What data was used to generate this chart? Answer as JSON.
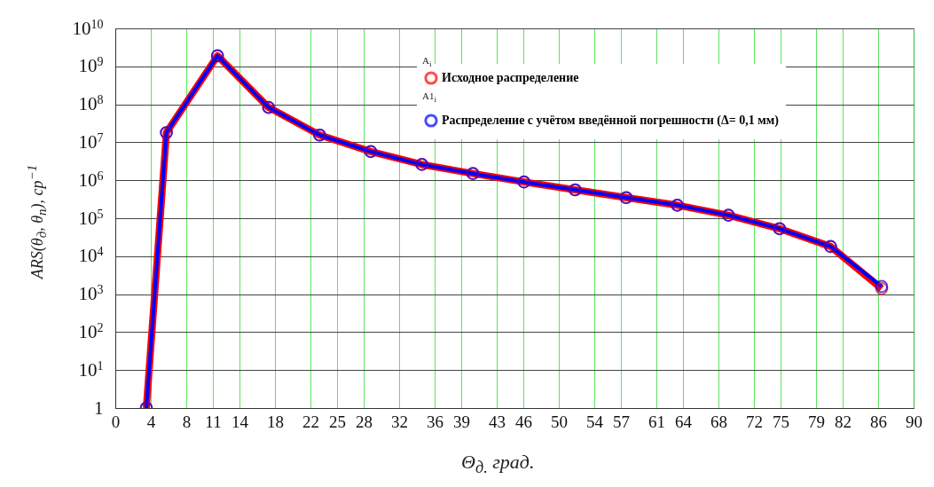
{
  "chart_data": {
    "type": "line",
    "xlabel": "Θ$_{д.}$ град.",
    "ylabel": "ARS(θ$_{д}$, θ$_{п}$), ср$^{−1}$",
    "x": [
      3.5,
      5.76,
      11.52,
      17.28,
      23.04,
      28.8,
      34.56,
      40.32,
      46.08,
      51.84,
      57.6,
      63.36,
      69.12,
      74.88,
      80.64,
      86.4
    ],
    "series": [
      {
        "name": "Исходное распределение",
        "color": "#ff0000",
        "values": [
          1,
          18000000,
          1900000000,
          83000000,
          15500000,
          5700000,
          2600000,
          1500000,
          900000,
          560000,
          350000,
          220000,
          120000,
          53000,
          18000,
          1400
        ]
      },
      {
        "name": "Распределение с учётом введённой погрешности (Δ= 0,1 мм)",
        "color": "#0000ff",
        "values": [
          1,
          18000000,
          1900000000,
          83000000,
          15500000,
          5700000,
          2600000,
          1500000,
          900000,
          560000,
          350000,
          220000,
          120000,
          53000,
          18000,
          1600
        ]
      }
    ],
    "annotations": [
      "A$_{i}$",
      "A1$_{i}$"
    ],
    "log": "y",
    "xlim": [
      0,
      90
    ],
    "xticks": [
      0,
      4,
      8,
      11,
      14,
      18,
      22,
      25,
      28,
      32,
      36,
      39,
      43,
      46,
      50,
      54,
      57,
      61,
      64,
      68,
      72,
      75,
      79,
      82,
      86,
      90
    ],
    "ylim": [
      1,
      10000000000
    ],
    "yticks": [
      1,
      {
        "value": 10,
        "label": "10$^{1}$"
      },
      {
        "value": 100,
        "label": "10$^{2}$"
      },
      {
        "value": 1000,
        "label": "10$^{3}$"
      },
      {
        "value": 10000,
        "label": "10$^{4}$"
      },
      {
        "value": 100000,
        "label": "10$^{5}$"
      },
      {
        "value": 1000000,
        "label": "10$^{6}$"
      },
      {
        "value": 10000000,
        "label": "10$^{7}$"
      },
      {
        "value": 100000000,
        "label": "10$^{8}$"
      },
      {
        "value": 1000000000,
        "label": "10$^{9}$"
      },
      {
        "value": 10000000000,
        "label": "10$^{10}$"
      }
    ],
    "grid": true,
    "legend": "top right",
    "marker": "circle",
    "line_style": "solid"
  }
}
